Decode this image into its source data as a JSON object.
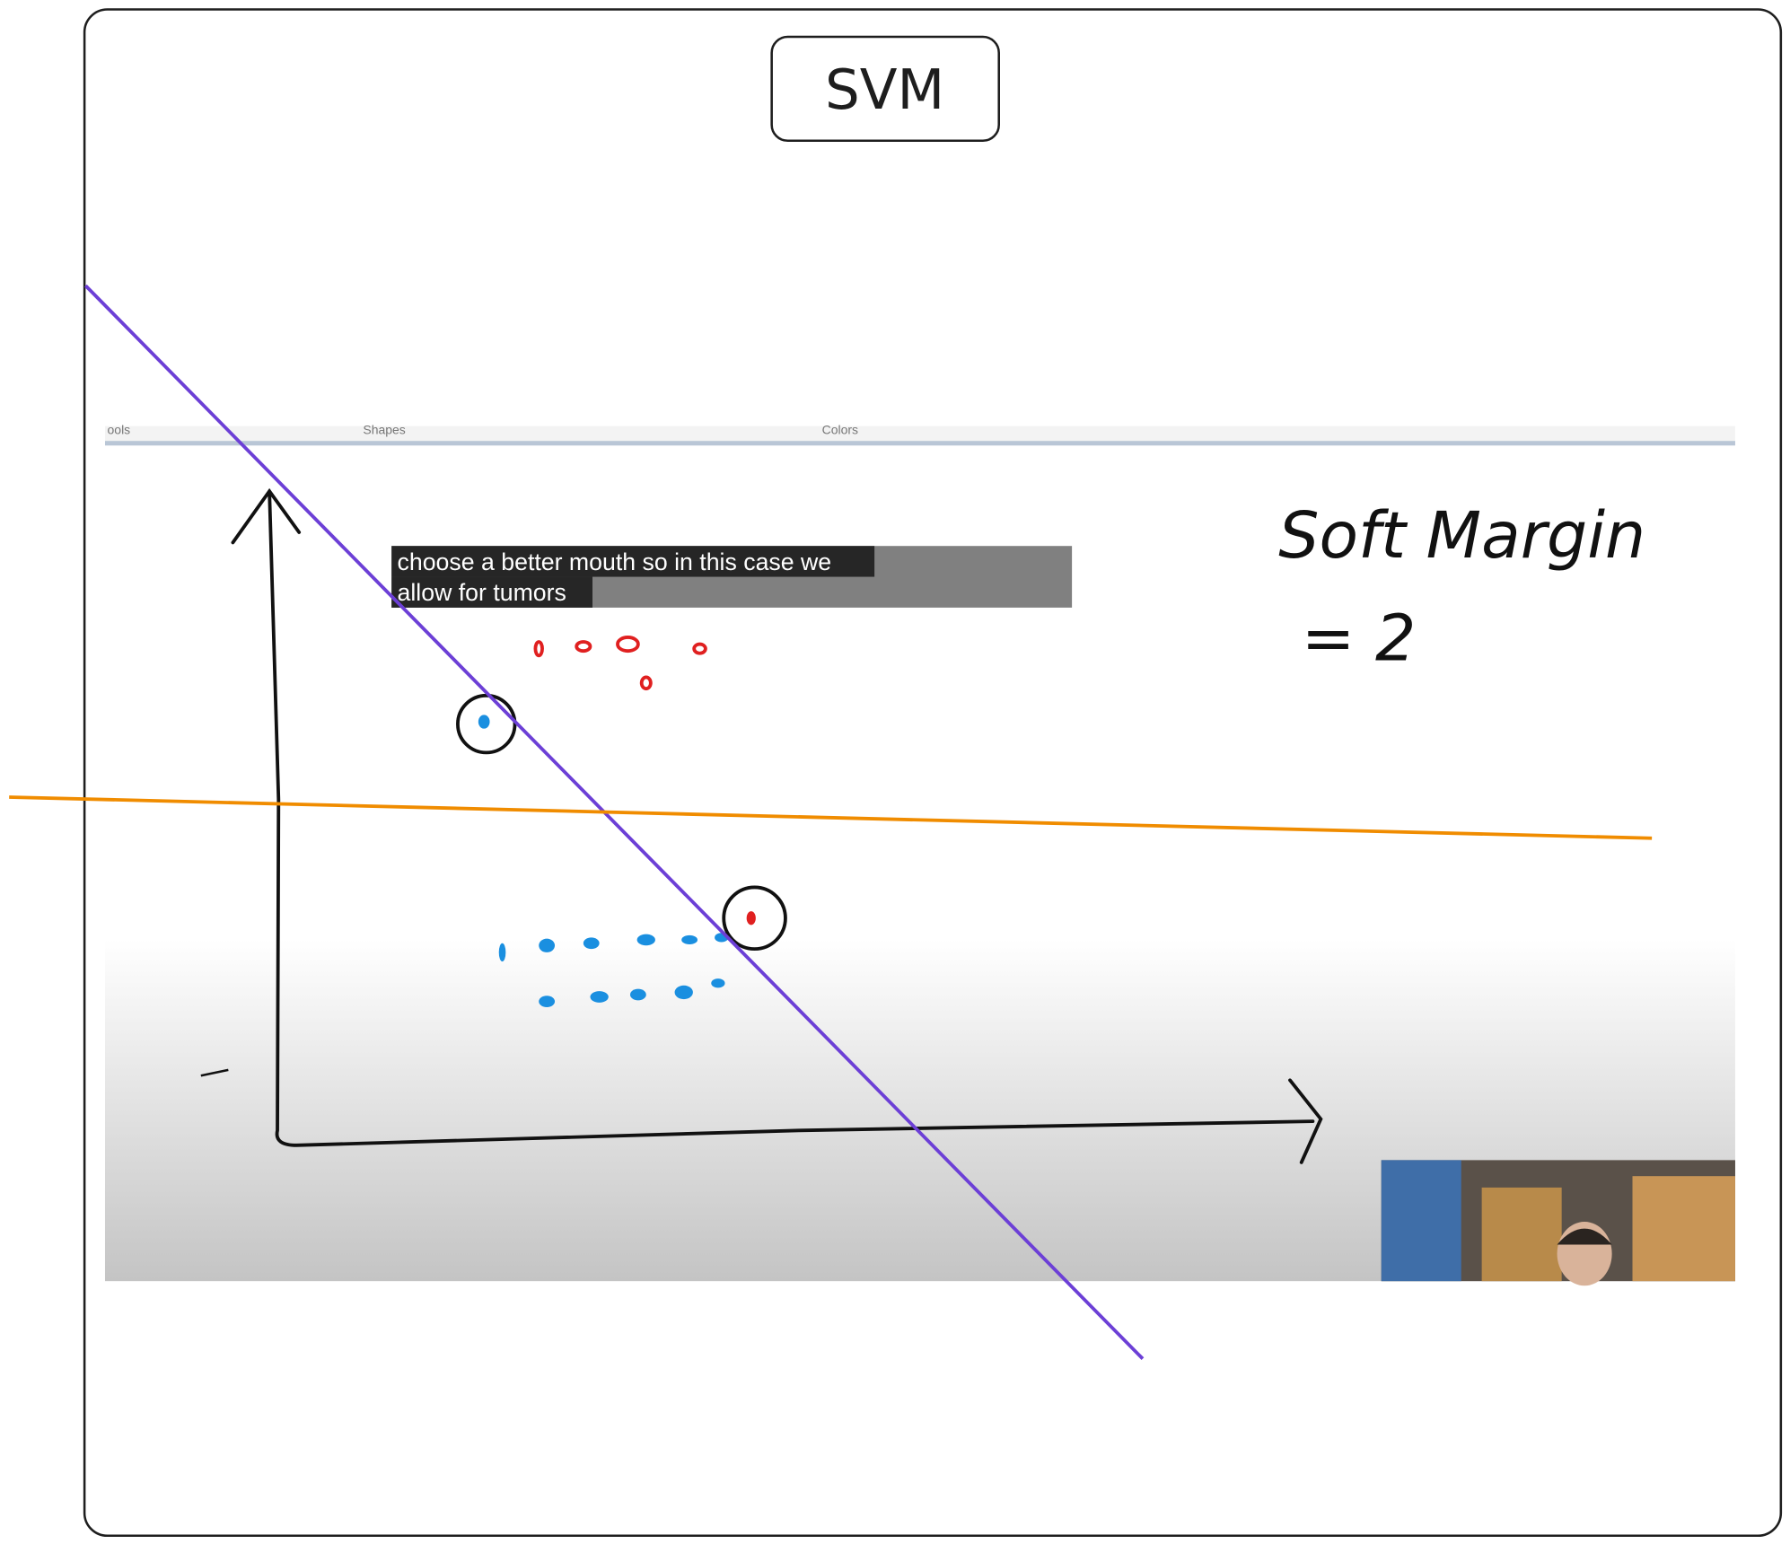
{
  "title": "SVM",
  "video": {
    "toolbar": [
      "ools",
      "Shapes",
      "Colors"
    ],
    "caption": [
      "choose a better mouth so in this case we",
      "allow for tumors"
    ],
    "annotation": [
      "Soft Margin",
      "= 2"
    ]
  }
}
